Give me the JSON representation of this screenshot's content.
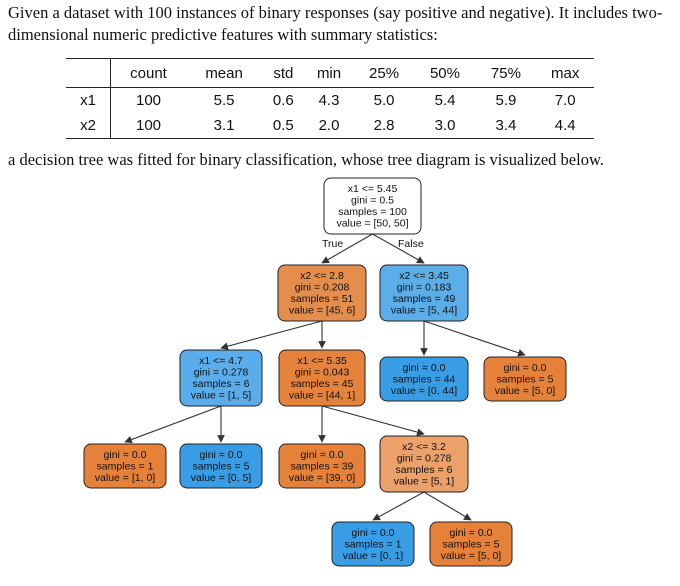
{
  "intro": "Given a dataset with 100 instances of binary responses (say positive and negative). It includes two-dimensional numeric predictive features with summary statistics:",
  "table": {
    "headers": [
      "",
      "count",
      "mean",
      "std",
      "min",
      "25%",
      "50%",
      "75%",
      "max"
    ],
    "rows": [
      [
        "x1",
        "100",
        "5.5",
        "0.6",
        "4.3",
        "5.0",
        "5.4",
        "5.9",
        "7.0"
      ],
      [
        "x2",
        "100",
        "3.1",
        "0.5",
        "2.0",
        "2.8",
        "3.0",
        "3.4",
        "4.4"
      ]
    ]
  },
  "middle": "a decision tree was fitted for binary classification, whose tree diagram is visualized below.",
  "colors": {
    "white": "#ffffff",
    "orange": "#e58139",
    "orange_light": "#eaa06a",
    "blue": "#42a3e8",
    "blue_light": "#4fa8ea"
  },
  "tree": {
    "edge_labels": {
      "true": "True",
      "false": "False"
    },
    "nodes": [
      {
        "id": "n0",
        "color": "#ffffff",
        "lines": [
          "x1 <= 5.45",
          "gini = 0.5",
          "samples = 100",
          "value = [50, 50]"
        ]
      },
      {
        "id": "n1",
        "color": "#e58d4c",
        "lines": [
          "x2 <= 2.8",
          "gini = 0.208",
          "samples = 51",
          "value = [45, 6]"
        ]
      },
      {
        "id": "n2",
        "color": "#5caeea",
        "lines": [
          "x2 <= 3.45",
          "gini = 0.183",
          "samples = 49",
          "value = [5, 44]"
        ]
      },
      {
        "id": "n3",
        "color": "#5aadea",
        "lines": [
          "x1 <= 4.7",
          "gini = 0.278",
          "samples = 6",
          "value = [1, 5]"
        ]
      },
      {
        "id": "n4",
        "color": "#e5833c",
        "lines": [
          "x1 <= 5.35",
          "gini = 0.043",
          "samples = 45",
          "value = [44, 1]"
        ]
      },
      {
        "id": "n5",
        "color": "#399de5",
        "lines": [
          "gini = 0.0",
          "samples = 44",
          "value = [0, 44]"
        ]
      },
      {
        "id": "n6",
        "color": "#e58139",
        "lines": [
          "gini = 0.0",
          "samples = 5",
          "value = [5, 0]"
        ]
      },
      {
        "id": "n7",
        "color": "#e58139",
        "lines": [
          "gini = 0.0",
          "samples = 1",
          "value = [1, 0]"
        ]
      },
      {
        "id": "n8",
        "color": "#399de5",
        "lines": [
          "gini = 0.0",
          "samples = 5",
          "value = [0, 5]"
        ]
      },
      {
        "id": "n9",
        "color": "#e58139",
        "lines": [
          "gini = 0.0",
          "samples = 39",
          "value = [39, 0]"
        ]
      },
      {
        "id": "n10",
        "color": "#eca06a",
        "lines": [
          "x2 <= 3.2",
          "gini = 0.278",
          "samples = 6",
          "value = [5, 1]"
        ]
      },
      {
        "id": "n11",
        "color": "#399de5",
        "lines": [
          "gini = 0.0",
          "samples = 1",
          "value = [0, 1]"
        ]
      },
      {
        "id": "n12",
        "color": "#e58139",
        "lines": [
          "gini = 0.0",
          "samples = 5",
          "value = [5, 0]"
        ]
      }
    ],
    "edges": [
      [
        "n0",
        "n1"
      ],
      [
        "n0",
        "n2"
      ],
      [
        "n1",
        "n3"
      ],
      [
        "n1",
        "n4"
      ],
      [
        "n2",
        "n5"
      ],
      [
        "n2",
        "n6"
      ],
      [
        "n3",
        "n7"
      ],
      [
        "n3",
        "n8"
      ],
      [
        "n4",
        "n9"
      ],
      [
        "n4",
        "n10"
      ],
      [
        "n10",
        "n11"
      ],
      [
        "n10",
        "n12"
      ]
    ]
  }
}
